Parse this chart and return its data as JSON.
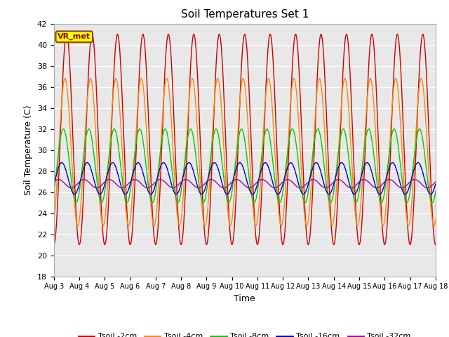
{
  "title": "Soil Temperatures Set 1",
  "xlabel": "Time",
  "ylabel": "Soil Temperature (C)",
  "ylim": [
    18,
    42
  ],
  "background_color": "#e8e8e8",
  "grid_color": "#ffffff",
  "fig_bg": "#ffffff",
  "annotation_text": "VR_met",
  "annotation_bg": "#ffff00",
  "annotation_border": "#8b4513",
  "xtick_labels": [
    "Aug 3",
    "Aug 4",
    "Aug 5",
    "Aug 6",
    "Aug 7",
    "Aug 8",
    "Aug 9",
    "Aug 10",
    "Aug 11",
    "Aug 12",
    "Aug 13",
    "Aug 14",
    "Aug 15",
    "Aug 16",
    "Aug 17",
    "Aug 18"
  ],
  "series_params": {
    "Tsoil -2cm": {
      "color": "#cc0000",
      "mean": 31.0,
      "amp": 10.0,
      "phase": 0.0,
      "noise": 0.0
    },
    "Tsoil -4cm": {
      "color": "#ff8800",
      "mean": 29.8,
      "amp": 7.0,
      "phase": 0.4,
      "noise": 0.0
    },
    "Tsoil -8cm": {
      "color": "#00cc00",
      "mean": 28.5,
      "amp": 3.5,
      "phase": 0.8,
      "noise": 0.0
    },
    "Tsoil -16cm": {
      "color": "#0000cc",
      "mean": 27.3,
      "amp": 1.5,
      "phase": 1.2,
      "noise": 0.0
    },
    "Tsoil -32cm": {
      "color": "#aa00aa",
      "mean": 26.8,
      "amp": 0.4,
      "phase": 2.0,
      "noise": 0.0
    }
  }
}
